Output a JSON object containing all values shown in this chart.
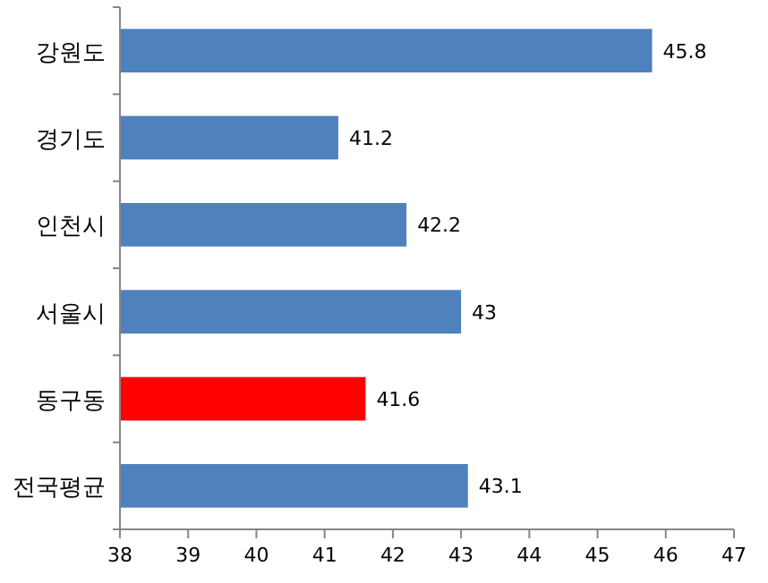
{
  "chart_data": {
    "type": "bar",
    "orientation": "horizontal",
    "categories": [
      "강원도",
      "경기도",
      "인천시",
      "서울시",
      "동구동",
      "전국평균"
    ],
    "values": [
      45.8,
      41.2,
      42.2,
      43,
      41.6,
      43.1
    ],
    "colors": [
      "#4f81bd",
      "#4f81bd",
      "#4f81bd",
      "#4f81bd",
      "#ff0000",
      "#4f81bd"
    ],
    "xlim": [
      38,
      47
    ],
    "xticks": [
      38,
      39,
      40,
      41,
      42,
      43,
      44,
      45,
      46,
      47
    ],
    "data_labels": true
  }
}
